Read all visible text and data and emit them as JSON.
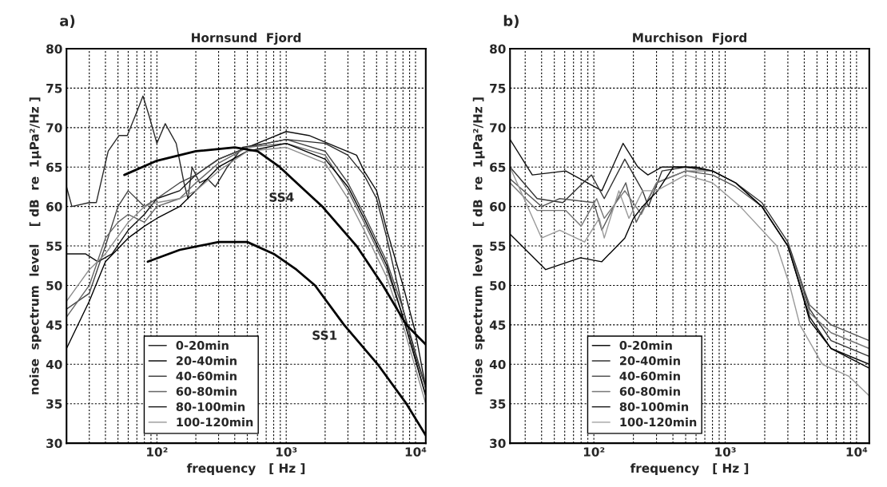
{
  "chart_data": [
    {
      "type": "line",
      "title": "Hornsund  Fjord",
      "xlabel": "frequency   [ Hz ]",
      "ylabel": "noise  spectrum  level    [ dB  re  1μPa²/Hz ]",
      "annotations": [
        "a)",
        {
          "text": "SS4",
          "x": 1300,
          "y": 62.5
        },
        {
          "text": "SS1",
          "x": 2800,
          "y": 45
        }
      ],
      "log": "x",
      "grid": true,
      "legend": "bottom left",
      "xlim": [
        20,
        12000
      ],
      "ylim": [
        30,
        80
      ],
      "xticks": [
        {
          "value": 100,
          "label": "10²"
        },
        {
          "value": 1000,
          "label": "10³"
        },
        {
          "value": 10000,
          "label": "10⁴"
        }
      ],
      "yticks": [
        30,
        35,
        40,
        45,
        50,
        55,
        60,
        65,
        70,
        75,
        80
      ],
      "series": [
        {
          "name": "0-20min",
          "color": "#2a2a2a",
          "x": [
            20,
            22,
            30,
            34,
            42,
            51,
            59,
            70,
            78,
            87,
            100,
            116,
            141,
            162,
            174,
            187,
            214,
            246,
            283,
            350,
            460,
            700,
            1000,
            2000,
            3000,
            4000,
            5000,
            6000,
            8000,
            10000,
            12000
          ],
          "values": [
            62.5,
            60,
            60.5,
            60.5,
            67,
            69,
            69,
            72,
            74,
            71.5,
            68,
            70.5,
            68,
            63,
            61,
            65,
            63,
            63.5,
            62.5,
            65,
            67.5,
            68,
            68.5,
            68,
            66.5,
            64,
            61,
            56,
            47,
            41,
            37
          ]
        },
        {
          "name": "20-40min",
          "color": "#111111",
          "x": [
            20,
            28,
            35,
            45,
            60,
            80,
            100,
            150,
            200,
            300,
            500,
            1000,
            1500,
            2500,
            3500,
            4000,
            5000,
            6000,
            8000,
            10000,
            12000
          ],
          "values": [
            54,
            54,
            53,
            54,
            57,
            59,
            61,
            62,
            64,
            66,
            67.5,
            69.5,
            69,
            67.5,
            66.5,
            64.5,
            62,
            57,
            50,
            44,
            37
          ]
        },
        {
          "name": "40-60min",
          "color": "#444444",
          "x": [
            20,
            30,
            40,
            50,
            60,
            80,
            100,
            150,
            200,
            300,
            500,
            1000,
            2000,
            3000,
            4000,
            6000,
            8000,
            12000
          ],
          "values": [
            47,
            49,
            55,
            60,
            62,
            60,
            61,
            63,
            64,
            66,
            67.5,
            68.5,
            67,
            63,
            59,
            53,
            47,
            37
          ]
        },
        {
          "name": "60-80min",
          "color": "#666666",
          "x": [
            20,
            30,
            40,
            50,
            60,
            80,
            100,
            150,
            200,
            300,
            500,
            1000,
            2000,
            3000,
            4000,
            6000,
            8000,
            12000
          ],
          "values": [
            46,
            50,
            56,
            58,
            59,
            58,
            60,
            61,
            63,
            65.5,
            67.5,
            68,
            66.5,
            62,
            58,
            52,
            46,
            36
          ]
        },
        {
          "name": "80-100min",
          "color": "#000000",
          "x": [
            20,
            30,
            40,
            60,
            80,
            100,
            150,
            200,
            300,
            500,
            1000,
            2000,
            3000,
            4000,
            6000,
            8000,
            12000
          ],
          "values": [
            42,
            48,
            53,
            56,
            57.5,
            58.5,
            60,
            62,
            65,
            67,
            68,
            66,
            62.5,
            58.5,
            52.5,
            46,
            36
          ]
        },
        {
          "name": "100-120min",
          "color": "#8c8c8c",
          "x": [
            20,
            30,
            40,
            60,
            80,
            100,
            150,
            200,
            300,
            500,
            1000,
            2000,
            3000,
            4000,
            6000,
            8000,
            12000
          ],
          "values": [
            48,
            52,
            54,
            58,
            60,
            60.5,
            61,
            62,
            64.5,
            67,
            67.5,
            65.5,
            61,
            57,
            51,
            45,
            35
          ]
        },
        {
          "color": "#000000",
          "x": [
            56,
            100,
            200,
            400,
            600,
            890,
            1300,
            1900,
            3500,
            5600,
            8500,
            12000
          ],
          "values": [
            64,
            65.8,
            67,
            67.5,
            67,
            65,
            62.5,
            60,
            55,
            50,
            45,
            42.5
          ]
        },
        {
          "color": "#000000",
          "x": [
            85,
            150,
            300,
            500,
            800,
            1200,
            1670,
            2800,
            5100,
            8500,
            12000
          ],
          "values": [
            53,
            54.5,
            55.5,
            55.5,
            54,
            52,
            50,
            45,
            40,
            35,
            31
          ]
        }
      ]
    },
    {
      "type": "line",
      "title": "Murchison  Fjord",
      "xlabel": "frequency   [ Hz ]",
      "ylabel": "noise  spectrum  level    [ dB  re  1μPa²/Hz ]",
      "annotations": [
        "b)"
      ],
      "log": "x",
      "grid": true,
      "legend": "bottom left",
      "xlim": [
        23,
        12500
      ],
      "ylim": [
        30,
        80
      ],
      "xticks": [
        {
          "value": 100,
          "label": "10²"
        },
        {
          "value": 1000,
          "label": "10³"
        },
        {
          "value": 10000,
          "label": "10⁴"
        }
      ],
      "yticks": [
        30,
        35,
        40,
        45,
        50,
        55,
        60,
        65,
        70,
        75,
        80
      ],
      "series": [
        {
          "name": "0-20min",
          "color": "#111111",
          "x": [
            23,
            34,
            61,
            115,
            167,
            216,
            258,
            330,
            500,
            800,
            1200,
            1900,
            3000,
            3700,
            4400,
            6400,
            12500
          ],
          "values": [
            68.5,
            64,
            64.5,
            62,
            68,
            65,
            64,
            65,
            65,
            64.5,
            63,
            60,
            55,
            50,
            46,
            42,
            40
          ]
        },
        {
          "name": "20-40min",
          "color": "#333333",
          "x": [
            23,
            37,
            58,
            96,
            120,
            172,
            235,
            260,
            330,
            500,
            800,
            1200,
            1900,
            3000,
            3700,
            4400,
            6400,
            12500
          ],
          "values": [
            65,
            61,
            60.5,
            64,
            61,
            66,
            62,
            60,
            64.5,
            65,
            64.5,
            63,
            60.5,
            55.5,
            51,
            47,
            43,
            41
          ]
        },
        {
          "name": "40-60min",
          "color": "#555555",
          "x": [
            23,
            40,
            55,
            100,
            115,
            175,
            210,
            300,
            500,
            800,
            1200,
            1900,
            3000,
            3700,
            4400,
            6400,
            12500
          ],
          "values": [
            63.5,
            60,
            61,
            60.5,
            57,
            63,
            58,
            63,
            64.5,
            64,
            62.5,
            60,
            55,
            51,
            47.5,
            45,
            43
          ]
        },
        {
          "name": "60-80min",
          "color": "#777777",
          "x": [
            23,
            37,
            61,
            80,
            105,
            120,
            172,
            230,
            300,
            500,
            800,
            1200,
            1900,
            3000,
            3700,
            4400,
            6400,
            12500
          ],
          "values": [
            63,
            59.5,
            59.5,
            57.5,
            61,
            58.5,
            62,
            59,
            63,
            64.5,
            64.5,
            63,
            60,
            55,
            50.5,
            46.5,
            44,
            42
          ]
        },
        {
          "name": "80-100min",
          "color": "#000000",
          "x": [
            23,
            43,
            79,
            115,
            172,
            200,
            235,
            307,
            403,
            600,
            800,
            1200,
            1900,
            3000,
            3700,
            4400,
            6400,
            12500
          ],
          "values": [
            56.5,
            52,
            53.5,
            53,
            56,
            58.5,
            60,
            62,
            65,
            65,
            64.5,
            63,
            60,
            55,
            50,
            45.5,
            42,
            39.5
          ]
        },
        {
          "name": "100-120min",
          "color": "#999999",
          "x": [
            23,
            40,
            55,
            85,
            110,
            120,
            155,
            185,
            235,
            300,
            500,
            800,
            1300,
            2470,
            3100,
            3700,
            5500,
            8700,
            12500
          ],
          "values": [
            65,
            56,
            57,
            55.5,
            58.5,
            56,
            62,
            58.5,
            62,
            62,
            64,
            63,
            60,
            55,
            50,
            45,
            40,
            38.5,
            36
          ]
        }
      ]
    }
  ]
}
